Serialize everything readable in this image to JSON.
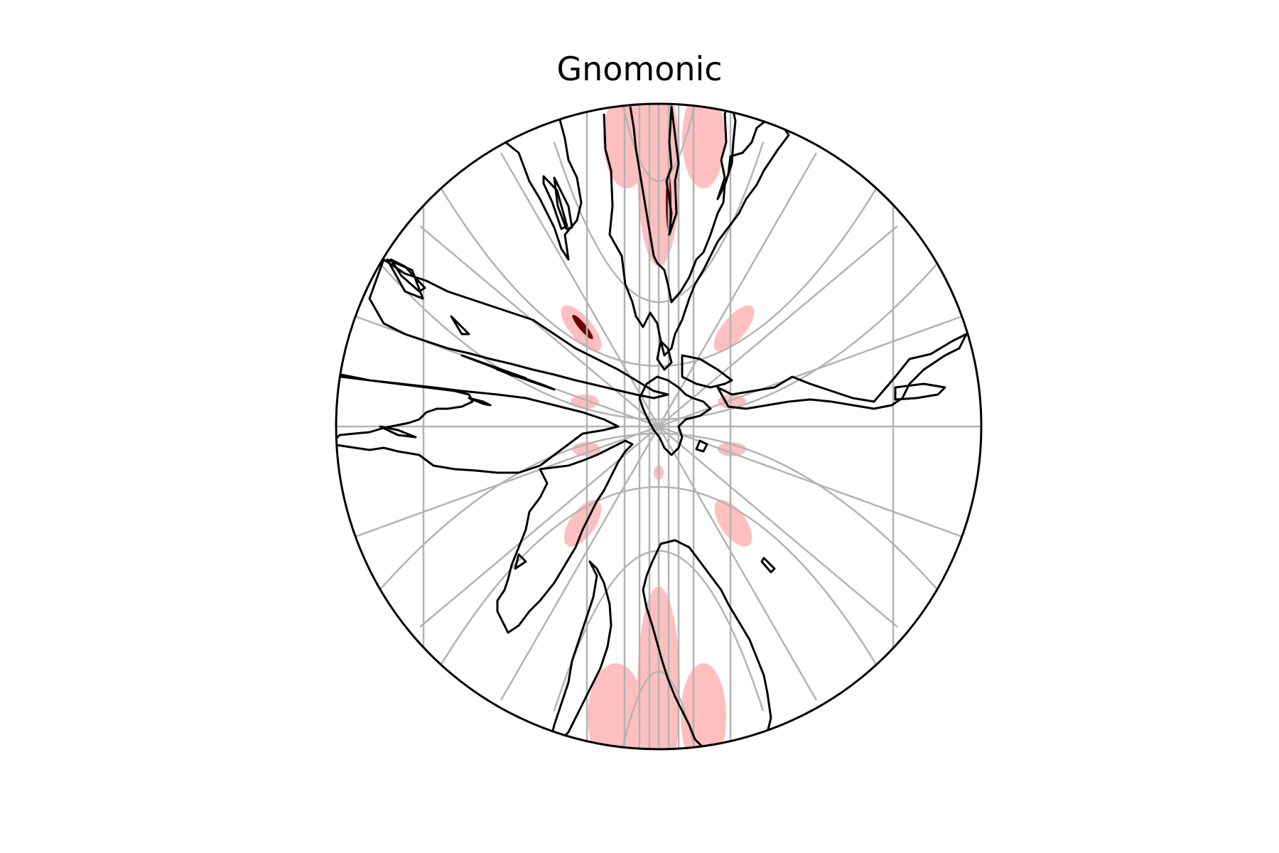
{
  "map": {
    "title": "Gnomonic",
    "projection": "gnomonic",
    "boundary_shape": "circle",
    "colors": {
      "background": "#ffffff",
      "coastline": "#000000",
      "gridline": "#b3b3b3",
      "ellipse_fill": "#ffbfbf",
      "ellipse_overlap": "#6b0000"
    },
    "features": [
      "coastlines",
      "graticule",
      "tissot-indicatrices"
    ]
  }
}
